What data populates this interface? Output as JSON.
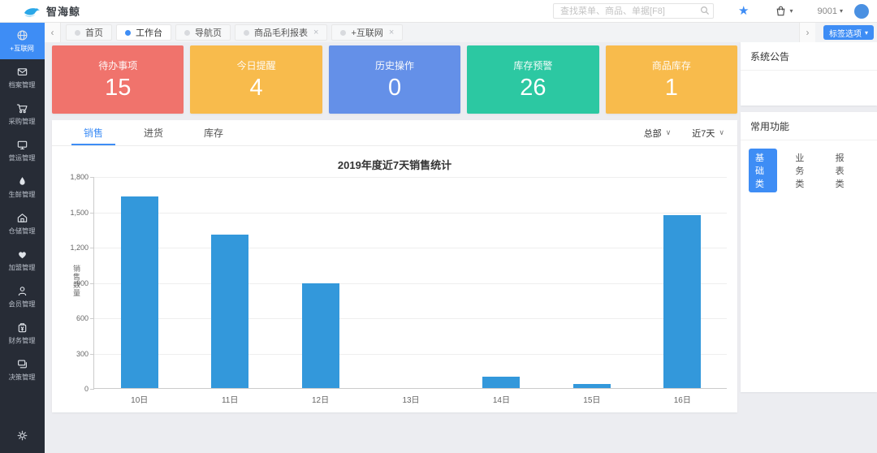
{
  "topbar": {
    "brand": "智海鲸",
    "search_placeholder": "查找菜单、商品、单据[F8]",
    "user_code": "9001"
  },
  "icons": {
    "chevron_left": "‹",
    "chevron_right": "›",
    "caret_down": "▾",
    "select_caret": "∨",
    "star": "★",
    "close": "×"
  },
  "sidebar": {
    "items": [
      {
        "label": "+互联网",
        "icon": "globe-icon",
        "active": true
      },
      {
        "label": "档案管理",
        "icon": "archive-icon",
        "active": false
      },
      {
        "label": "采购管理",
        "icon": "cart-icon",
        "active": false
      },
      {
        "label": "营运管理",
        "icon": "monitor-icon",
        "active": false
      },
      {
        "label": "生鲜管理",
        "icon": "drop-icon",
        "active": false
      },
      {
        "label": "仓储管理",
        "icon": "warehouse-icon",
        "active": false
      },
      {
        "label": "加盟管理",
        "icon": "franchise-icon",
        "active": false
      },
      {
        "label": "会员管理",
        "icon": "member-icon",
        "active": false
      },
      {
        "label": "财务管理",
        "icon": "finance-icon",
        "active": false
      },
      {
        "label": "决策管理",
        "icon": "decision-icon",
        "active": false
      }
    ]
  },
  "tabbar": {
    "tabs": [
      {
        "label": "首页",
        "active": false,
        "closable": false
      },
      {
        "label": "工作台",
        "active": true,
        "closable": false
      },
      {
        "label": "导航页",
        "active": false,
        "closable": false
      },
      {
        "label": "商品毛利报表",
        "active": false,
        "closable": true
      },
      {
        "label": "+互联网",
        "active": false,
        "closable": true
      }
    ],
    "action_label": "标签选项"
  },
  "stat_cards": [
    {
      "label": "待办事项",
      "value": "15",
      "color": "#f0736c"
    },
    {
      "label": "今日提醒",
      "value": "4",
      "color": "#f8bb4c"
    },
    {
      "label": "历史操作",
      "value": "0",
      "color": "#6490e8"
    },
    {
      "label": "库存预警",
      "value": "26",
      "color": "#2cc8a2"
    },
    {
      "label": "商品库存",
      "value": "1",
      "color": "#f8bb4c"
    }
  ],
  "chart_panel": {
    "tabs": [
      {
        "label": "销售",
        "active": true
      },
      {
        "label": "进货",
        "active": false
      },
      {
        "label": "库存",
        "active": false
      }
    ],
    "filters": [
      "总部",
      "近7天"
    ]
  },
  "chart_data": {
    "type": "bar",
    "title": "2019年度近7天销售统计",
    "categories": [
      "10日",
      "11日",
      "12日",
      "13日",
      "14日",
      "15日",
      "16日"
    ],
    "values": [
      1630,
      1300,
      890,
      0,
      95,
      35,
      1470
    ],
    "xlabel": "",
    "ylabel": "销售数量",
    "ylim": [
      0,
      1800
    ],
    "ytick_interval": 300,
    "ytick_labels": [
      "0",
      "300",
      "600",
      "900",
      "1,200",
      "1,500",
      "1,800"
    ],
    "bar_color": "#3398db",
    "grid": true,
    "legend_position": "none"
  },
  "right_panel": {
    "announcement_title": "系统公告",
    "functions_title": "常用功能",
    "function_tabs": [
      {
        "label": "基础类",
        "active": true
      },
      {
        "label": "业务类",
        "active": false
      },
      {
        "label": "报表类",
        "active": false
      }
    ]
  }
}
